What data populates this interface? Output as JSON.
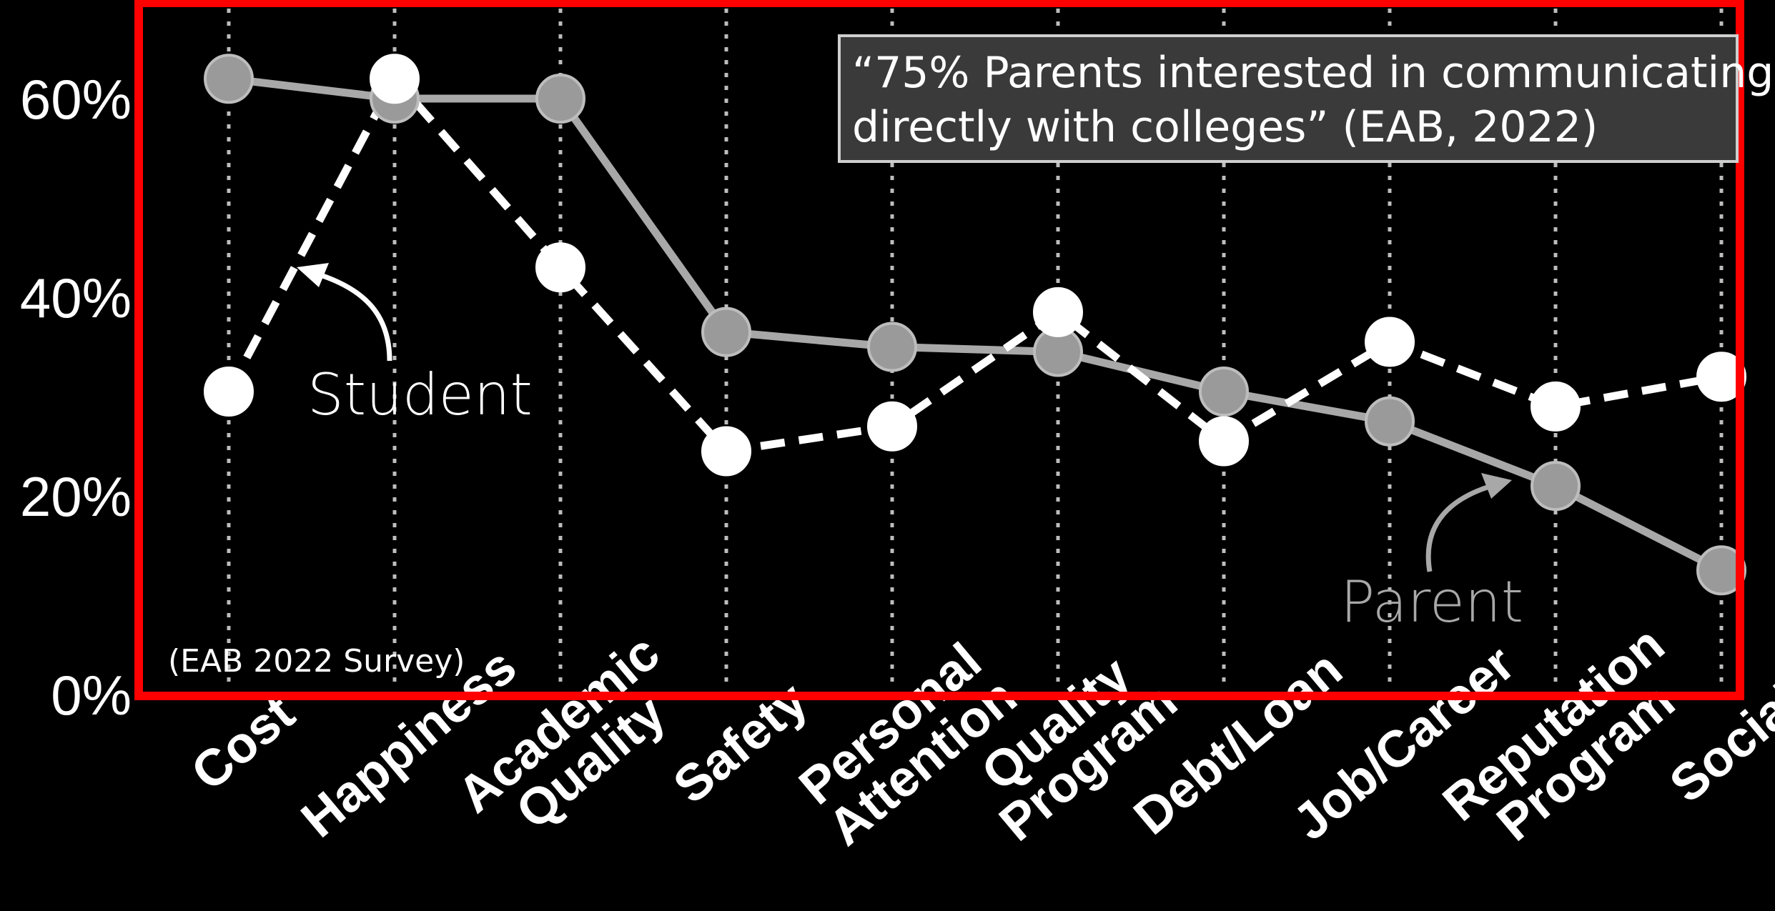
{
  "chart_data": {
    "type": "line",
    "categories": [
      "Cost",
      "Happiness",
      "Academic Quality",
      "Safety",
      "Personal Attention",
      "Quality Program",
      "Debt/Loan",
      "Job/Career",
      "Reputation Program",
      "Social"
    ],
    "category_lines": [
      [
        "Cost"
      ],
      [
        "Happiness"
      ],
      [
        "Academic",
        "Quality"
      ],
      [
        "Safety"
      ],
      [
        "Personal",
        "Attention"
      ],
      [
        "Quality",
        "Program"
      ],
      [
        "Debt/Loan"
      ],
      [
        "Job/Career"
      ],
      [
        "Reputation",
        "Program"
      ],
      [
        "Social"
      ]
    ],
    "series": [
      {
        "name": "Student",
        "color": "#ffffff",
        "style": "dashed",
        "values": [
          30.5,
          62.0,
          43.0,
          24.5,
          27.0,
          38.5,
          25.5,
          35.5,
          29.0,
          32.0
        ]
      },
      {
        "name": "Parent",
        "color": "#a8a8a8",
        "style": "solid",
        "values": [
          62.0,
          60.0,
          60.0,
          36.5,
          35.0,
          34.5,
          30.5,
          27.5,
          21.0,
          12.5
        ]
      }
    ],
    "y_ticks": [
      "0%",
      "20%",
      "40%",
      "60%"
    ],
    "y_tick_values": [
      0,
      20,
      40,
      60
    ],
    "ylim": [
      0,
      68
    ],
    "grid": "vertical-dotted",
    "callout": {
      "lines": [
        "“75% Parents interested in communicating",
        "directly with colleges” (EAB, 2022)"
      ]
    },
    "source_note": "(EAB 2022 Survey)",
    "frame_color": "#ff0000"
  }
}
